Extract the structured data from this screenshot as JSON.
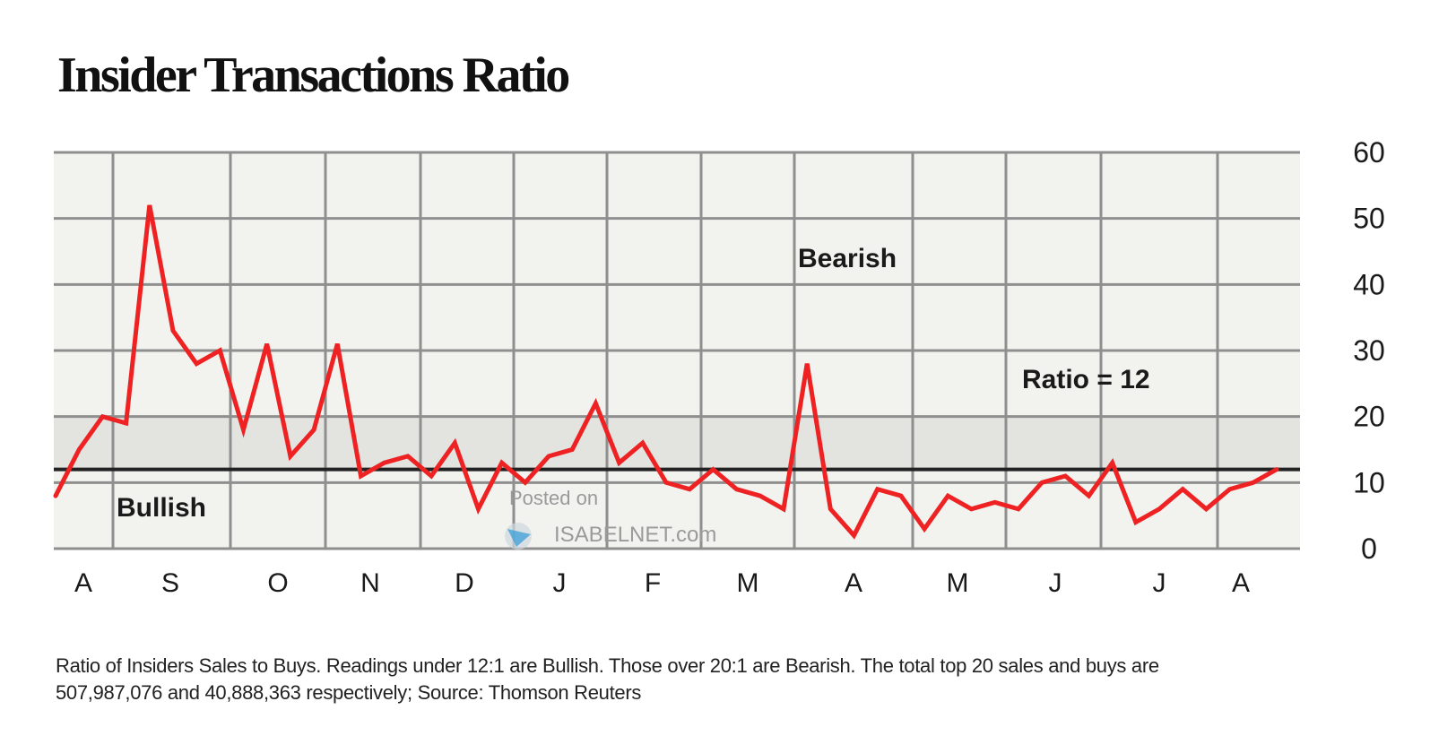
{
  "chart_data": {
    "type": "line",
    "title": "Insider Transactions Ratio",
    "xlabel": "",
    "ylabel": "",
    "ylim": [
      0,
      60
    ],
    "yticks": [
      0,
      10,
      20,
      30,
      40,
      50,
      60
    ],
    "x_tick_labels": [
      "A",
      "S",
      "O",
      "N",
      "D",
      "J",
      "F",
      "M",
      "A",
      "M",
      "J",
      "J",
      "A"
    ],
    "series": [
      {
        "name": "Ratio of Insiders Sales to Buys",
        "color": "#ee2222",
        "values": [
          8,
          15,
          20,
          19,
          52,
          33,
          28,
          30,
          18,
          31,
          14,
          18,
          31,
          11,
          13,
          14,
          11,
          16,
          6,
          13,
          10,
          14,
          15,
          22,
          13,
          16,
          10,
          9,
          12,
          9,
          8,
          6,
          28,
          6,
          2,
          9,
          8,
          3,
          8,
          6,
          7,
          6,
          10,
          11,
          8,
          13,
          4,
          6,
          9,
          6,
          9,
          10,
          12
        ]
      }
    ],
    "reference_line": {
      "value": 12,
      "label": "Ratio = 12"
    },
    "band": {
      "from": 12,
      "to": 20
    },
    "annotations": [
      "Bearish",
      "Bullish"
    ],
    "grid": true,
    "y_axis_position": "right"
  },
  "footnote": {
    "line1": "Ratio of Insiders Sales to Buys. Readings under 12:1 are Bullish. Those over 20:1 are Bearish. The total top 20 sales and buys are",
    "line2": "507,987,076 and 40,888,363 respectively; Source: Thomson Reuters"
  },
  "watermark": {
    "line1": "Posted on",
    "line2": "ISABELNET.com"
  },
  "colors": {
    "plot_bg": "#f2f2ee",
    "band_bg": "#e3e3e0",
    "grid": "#8f8f8f",
    "line": "#ee2222",
    "reference": "#222222"
  }
}
